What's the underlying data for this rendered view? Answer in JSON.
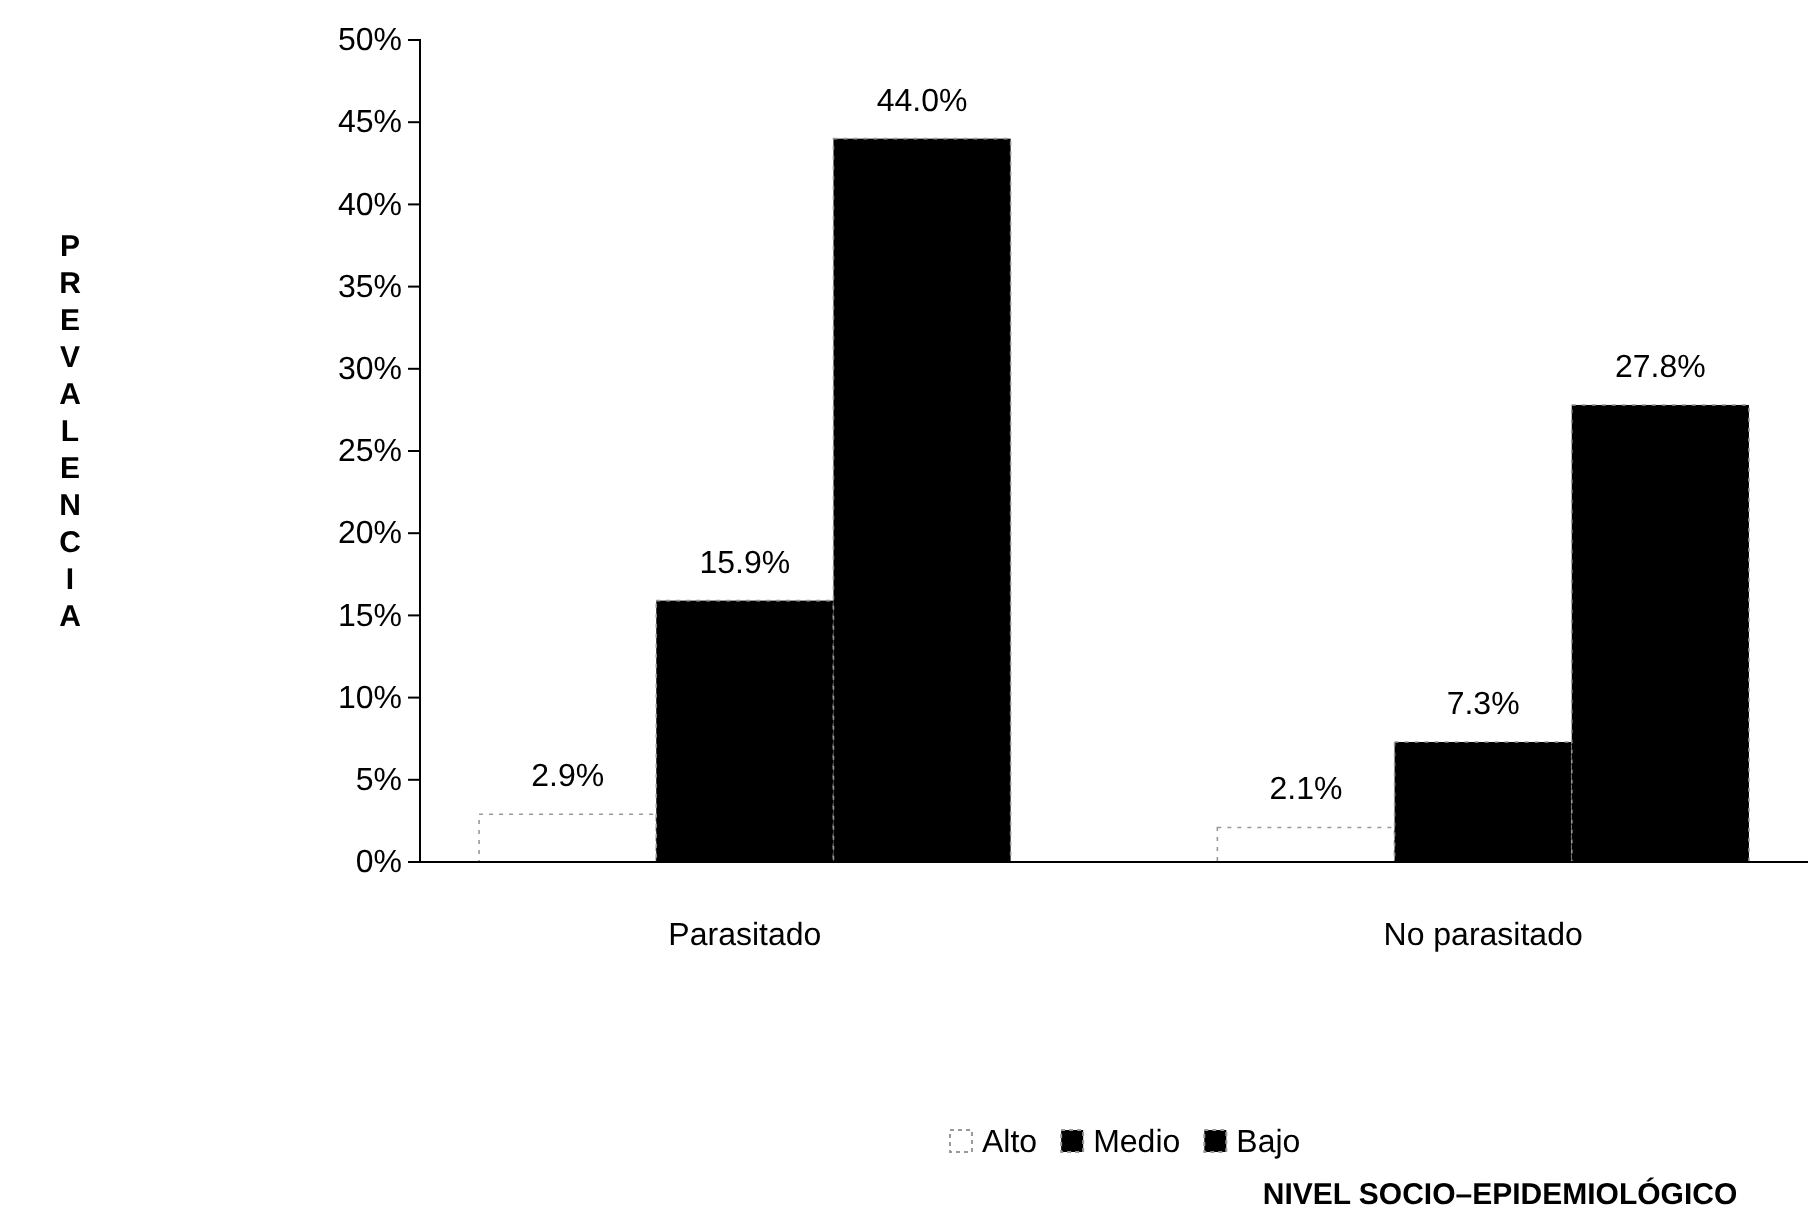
{
  "chart_data": {
    "type": "bar",
    "annotations": [
      "NIVEL SOCIO–EPIDEMIOLÓGICO"
    ],
    "ylabel": "PREVALENCIA",
    "categories": [
      "Parasitado",
      "No parasitado"
    ],
    "series": [
      {
        "name": "Alto",
        "color": "#ffffff",
        "values": [
          2.9,
          2.1
        ],
        "value_labels": [
          "2.9%",
          "2.1%"
        ]
      },
      {
        "name": "Medio",
        "color": "#000000",
        "values": [
          15.9,
          7.3
        ],
        "value_labels": [
          "15.9%",
          "7.3%"
        ]
      },
      {
        "name": "Bajo",
        "color": "#000000",
        "values": [
          44.0,
          27.8
        ],
        "value_labels": [
          "44.0%",
          "27.8%"
        ]
      }
    ],
    "ylim": [
      0,
      50
    ],
    "yticks": [
      {
        "value": 0,
        "label": "0%"
      },
      {
        "value": 5,
        "label": "5%"
      },
      {
        "value": 10,
        "label": "10%"
      },
      {
        "value": 15,
        "label": "15%"
      },
      {
        "value": 20,
        "label": "20%"
      },
      {
        "value": 25,
        "label": "25%"
      },
      {
        "value": 30,
        "label": "30%"
      },
      {
        "value": 35,
        "label": "35%"
      },
      {
        "value": 40,
        "label": "40%"
      },
      {
        "value": 45,
        "label": "45%"
      },
      {
        "value": 50,
        "label": "50%"
      }
    ],
    "legend": "bottom",
    "grid": false
  }
}
